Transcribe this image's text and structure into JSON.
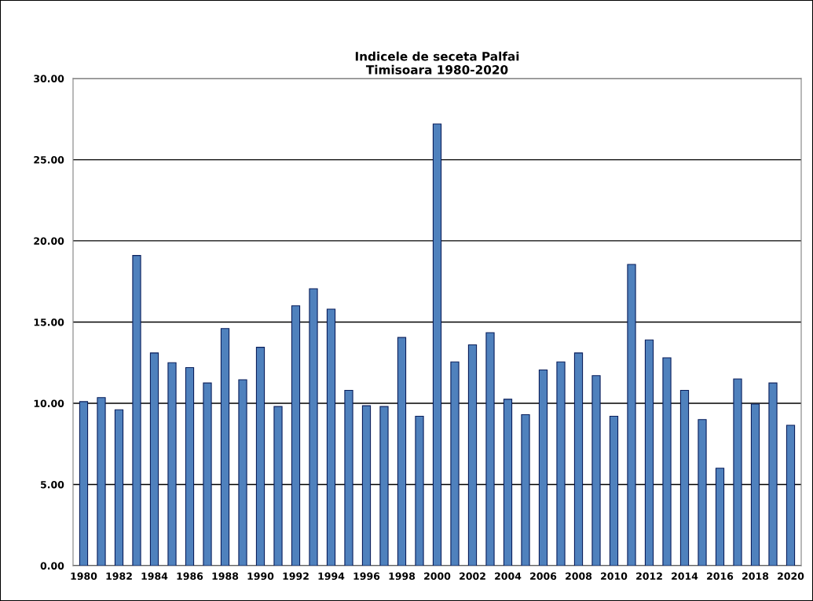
{
  "chart_data": {
    "type": "bar",
    "title": "Indicele de seceta Palfai\nTimisoara 1980-2020",
    "categories": [
      "1980",
      null,
      "1982",
      null,
      "1984",
      null,
      "1986",
      null,
      "1988",
      null,
      "1990",
      null,
      "1992",
      null,
      "1994",
      null,
      "1996",
      null,
      "1998",
      null,
      "2000",
      null,
      "2002",
      null,
      "2004",
      null,
      "2006",
      null,
      "2008",
      null,
      "2010",
      null,
      "2012",
      null,
      "2014",
      null,
      "2016",
      null,
      "2018",
      null,
      "2020"
    ],
    "values": [
      10.1,
      10.35,
      9.6,
      19.1,
      13.1,
      12.5,
      12.2,
      11.25,
      14.6,
      11.45,
      13.45,
      9.8,
      16.0,
      17.05,
      15.8,
      10.8,
      9.85,
      9.8,
      14.05,
      9.2,
      27.2,
      12.55,
      13.6,
      14.35,
      10.25,
      9.3,
      12.05,
      12.55,
      13.1,
      11.7,
      9.2,
      18.55,
      13.9,
      12.8,
      10.8,
      9.0,
      6.0,
      11.5,
      9.95,
      11.25,
      8.65
    ],
    "color": "#4f81bd",
    "ylim": [
      0,
      30
    ],
    "yticks": [
      {
        "value": 0,
        "label": "0.00"
      },
      {
        "value": 5,
        "label": "5.00"
      },
      {
        "value": 10,
        "label": "10.00"
      },
      {
        "value": 15,
        "label": "15.00"
      },
      {
        "value": 20,
        "label": "20.00"
      },
      {
        "value": 25,
        "label": "25.00"
      },
      {
        "value": 30,
        "label": "30.00"
      }
    ],
    "grid": "y",
    "legend": false
  }
}
